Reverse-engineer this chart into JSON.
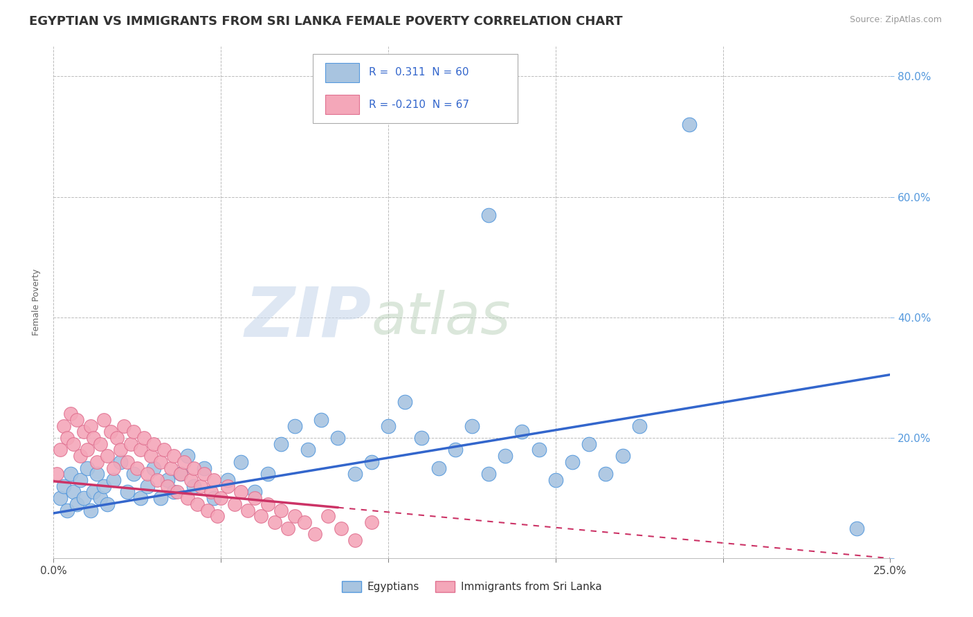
{
  "title": "EGYPTIAN VS IMMIGRANTS FROM SRI LANKA FEMALE POVERTY CORRELATION CHART",
  "source": "Source: ZipAtlas.com",
  "ylabel": "Female Poverty",
  "xlim": [
    0.0,
    0.25
  ],
  "ylim": [
    0.0,
    0.85
  ],
  "blue_color": "#a8c4e0",
  "blue_edge_color": "#5599dd",
  "pink_color": "#f4a7b9",
  "pink_edge_color": "#e07090",
  "blue_line_color": "#3366cc",
  "pink_line_color": "#cc3366",
  "legend_label1": "Egyptians",
  "legend_label2": "Immigrants from Sri Lanka",
  "watermark_zip": "ZIP",
  "watermark_atlas": "atlas",
  "background_color": "#ffffff",
  "grid_color": "#cccccc",
  "title_fontsize": 13,
  "axis_label_fontsize": 9
}
